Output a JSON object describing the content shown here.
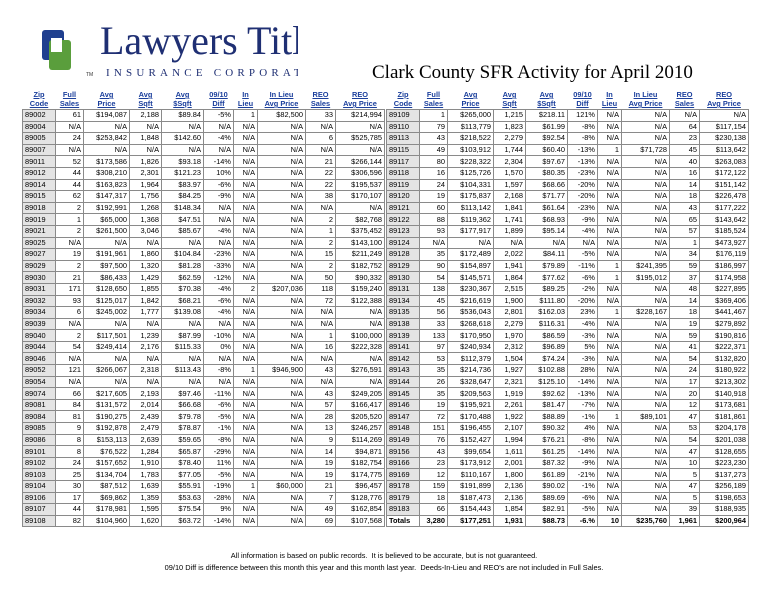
{
  "logo": {
    "name": "Lawyers Title",
    "tagline": "INSURANCE CORPORATION",
    "tm": "TM"
  },
  "title": "Clark County SFR Activity for April 2010",
  "columns": [
    [
      "Zip",
      "Code"
    ],
    [
      "Full",
      "Sales"
    ],
    [
      "Avg",
      "Price"
    ],
    [
      "Avg",
      "Sqft"
    ],
    [
      "Avg",
      "$Sqft"
    ],
    [
      "09/10",
      "Diff"
    ],
    [
      "In",
      "Lieu"
    ],
    [
      "In Lieu",
      "Avg Price"
    ],
    [
      "REO",
      "Sales"
    ],
    [
      "REO",
      "Avg Price"
    ]
  ],
  "tables": [
    {
      "rows": [
        [
          "89002",
          "61",
          "$194,087",
          "2,188",
          "$89.84",
          "-5%",
          "1",
          "$82,500",
          "33",
          "$214,994"
        ],
        [
          "89004",
          "N/A",
          "N/A",
          "N/A",
          "N/A",
          "N/A",
          "N/A",
          "N/A",
          "N/A",
          "N/A"
        ],
        [
          "89005",
          "24",
          "$253,842",
          "1,848",
          "$142.60",
          "-4%",
          "N/A",
          "N/A",
          "6",
          "$525,785"
        ],
        [
          "89007",
          "N/A",
          "N/A",
          "N/A",
          "N/A",
          "N/A",
          "N/A",
          "N/A",
          "N/A",
          "N/A"
        ],
        [
          "89011",
          "52",
          "$173,586",
          "1,826",
          "$93.18",
          "-14%",
          "N/A",
          "N/A",
          "21",
          "$266,144"
        ],
        [
          "89012",
          "44",
          "$308,210",
          "2,301",
          "$121.23",
          "10%",
          "N/A",
          "N/A",
          "22",
          "$306,596"
        ],
        [
          "89014",
          "44",
          "$163,823",
          "1,964",
          "$83.97",
          "-6%",
          "N/A",
          "N/A",
          "22",
          "$195,537"
        ],
        [
          "89015",
          "62",
          "$147,317",
          "1,756",
          "$84.25",
          "-9%",
          "N/A",
          "N/A",
          "38",
          "$170,107"
        ],
        [
          "89018",
          "2",
          "$192,991",
          "1,268",
          "$148.34",
          "N/A",
          "N/A",
          "N/A",
          "N/A",
          "N/A"
        ],
        [
          "89019",
          "1",
          "$65,000",
          "1,368",
          "$47.51",
          "N/A",
          "N/A",
          "N/A",
          "2",
          "$82,768"
        ],
        [
          "89021",
          "2",
          "$261,500",
          "3,046",
          "$85.67",
          "-4%",
          "N/A",
          "N/A",
          "1",
          "$375,452"
        ],
        [
          "89025",
          "N/A",
          "N/A",
          "N/A",
          "N/A",
          "N/A",
          "N/A",
          "N/A",
          "2",
          "$143,100"
        ],
        [
          "89027",
          "19",
          "$191,961",
          "1,860",
          "$104.84",
          "-23%",
          "N/A",
          "N/A",
          "15",
          "$211,249"
        ],
        [
          "89029",
          "2",
          "$97,500",
          "1,320",
          "$81.28",
          "-33%",
          "N/A",
          "N/A",
          "2",
          "$182,752"
        ],
        [
          "89030",
          "21",
          "$86,433",
          "1,429",
          "$62.59",
          "-12%",
          "N/A",
          "N/A",
          "50",
          "$90,332"
        ],
        [
          "89031",
          "171",
          "$128,650",
          "1,855",
          "$70.38",
          "-4%",
          "2",
          "$207,036",
          "118",
          "$159,240"
        ],
        [
          "89032",
          "93",
          "$125,017",
          "1,842",
          "$68.21",
          "-6%",
          "N/A",
          "N/A",
          "72",
          "$122,388"
        ],
        [
          "89034",
          "6",
          "$245,002",
          "1,777",
          "$139.08",
          "-4%",
          "N/A",
          "N/A",
          "N/A",
          "N/A"
        ],
        [
          "89039",
          "N/A",
          "N/A",
          "N/A",
          "N/A",
          "N/A",
          "N/A",
          "N/A",
          "N/A",
          "N/A"
        ],
        [
          "89040",
          "2",
          "$117,501",
          "1,239",
          "$87.99",
          "-10%",
          "N/A",
          "N/A",
          "1",
          "$100,000"
        ],
        [
          "89044",
          "54",
          "$249,414",
          "2,176",
          "$115.33",
          "0%",
          "N/A",
          "N/A",
          "16",
          "$222,328"
        ],
        [
          "89046",
          "N/A",
          "N/A",
          "N/A",
          "N/A",
          "N/A",
          "N/A",
          "N/A",
          "N/A",
          "N/A"
        ],
        [
          "89052",
          "121",
          "$266,067",
          "2,318",
          "$113.43",
          "-8%",
          "1",
          "$946,900",
          "43",
          "$276,591"
        ],
        [
          "89054",
          "N/A",
          "N/A",
          "N/A",
          "N/A",
          "N/A",
          "N/A",
          "N/A",
          "N/A",
          "N/A"
        ],
        [
          "89074",
          "66",
          "$217,605",
          "2,193",
          "$97.46",
          "-11%",
          "N/A",
          "N/A",
          "43",
          "$249,205"
        ],
        [
          "89081",
          "84",
          "$131,572",
          "2,014",
          "$66.68",
          "-6%",
          "N/A",
          "N/A",
          "57",
          "$166,417"
        ],
        [
          "89084",
          "81",
          "$190,275",
          "2,439",
          "$79.78",
          "-5%",
          "N/A",
          "N/A",
          "28",
          "$205,520"
        ],
        [
          "89085",
          "9",
          "$192,878",
          "2,479",
          "$78.87",
          "-1%",
          "N/A",
          "N/A",
          "13",
          "$246,257"
        ],
        [
          "89086",
          "8",
          "$153,113",
          "2,639",
          "$59.65",
          "-8%",
          "N/A",
          "N/A",
          "9",
          "$114,269"
        ],
        [
          "89101",
          "8",
          "$76,522",
          "1,284",
          "$65.87",
          "-29%",
          "N/A",
          "N/A",
          "14",
          "$94,871"
        ],
        [
          "89102",
          "24",
          "$157,652",
          "1,910",
          "$78.40",
          "11%",
          "N/A",
          "N/A",
          "19",
          "$182,754"
        ],
        [
          "89103",
          "25",
          "$134,704",
          "1,783",
          "$77.05",
          "-5%",
          "N/A",
          "N/A",
          "19",
          "$174,775"
        ],
        [
          "89104",
          "30",
          "$87,512",
          "1,639",
          "$55.91",
          "-19%",
          "1",
          "$60,000",
          "21",
          "$96,457"
        ],
        [
          "89106",
          "17",
          "$69,862",
          "1,359",
          "$53.63",
          "-28%",
          "N/A",
          "N/A",
          "7",
          "$128,776"
        ],
        [
          "89107",
          "44",
          "$178,981",
          "1,595",
          "$75.54",
          "9%",
          "N/A",
          "N/A",
          "49",
          "$162,854"
        ],
        [
          "89108",
          "82",
          "$104,960",
          "1,620",
          "$63.72",
          "-14%",
          "N/A",
          "N/A",
          "69",
          "$107,568"
        ]
      ]
    },
    {
      "rows": [
        [
          "89109",
          "1",
          "$265,000",
          "1,215",
          "$218.11",
          "121%",
          "N/A",
          "N/A",
          "N/A",
          "N/A"
        ],
        [
          "89110",
          "79",
          "$113,779",
          "1,823",
          "$61.99",
          "-8%",
          "N/A",
          "N/A",
          "64",
          "$117,154"
        ],
        [
          "89113",
          "43",
          "$218,522",
          "2,279",
          "$92.54",
          "-8%",
          "N/A",
          "N/A",
          "23",
          "$230,138"
        ],
        [
          "89115",
          "49",
          "$103,912",
          "1,744",
          "$60.40",
          "-13%",
          "1",
          "$71,728",
          "45",
          "$113,642"
        ],
        [
          "89117",
          "80",
          "$228,322",
          "2,304",
          "$97.67",
          "-13%",
          "N/A",
          "N/A",
          "40",
          "$263,083"
        ],
        [
          "89118",
          "16",
          "$125,726",
          "1,570",
          "$80.35",
          "-23%",
          "N/A",
          "N/A",
          "16",
          "$172,122"
        ],
        [
          "89119",
          "24",
          "$104,331",
          "1,597",
          "$68.66",
          "-20%",
          "N/A",
          "N/A",
          "14",
          "$151,142"
        ],
        [
          "89120",
          "19",
          "$175,837",
          "2,168",
          "$71.77",
          "-20%",
          "N/A",
          "N/A",
          "18",
          "$226,478"
        ],
        [
          "89121",
          "60",
          "$113,142",
          "1,841",
          "$61.64",
          "-23%",
          "N/A",
          "N/A",
          "43",
          "$177,222"
        ],
        [
          "89122",
          "88",
          "$119,362",
          "1,741",
          "$68.93",
          "-9%",
          "N/A",
          "N/A",
          "65",
          "$143,642"
        ],
        [
          "89123",
          "93",
          "$177,917",
          "1,899",
          "$95.14",
          "-4%",
          "N/A",
          "N/A",
          "57",
          "$185,524"
        ],
        [
          "89124",
          "N/A",
          "N/A",
          "N/A",
          "N/A",
          "N/A",
          "N/A",
          "N/A",
          "1",
          "$473,927"
        ],
        [
          "89128",
          "35",
          "$172,489",
          "2,022",
          "$84.11",
          "-5%",
          "N/A",
          "N/A",
          "34",
          "$176,119"
        ],
        [
          "89129",
          "90",
          "$154,897",
          "1,941",
          "$79.89",
          "-11%",
          "1",
          "$241,395",
          "59",
          "$186,997"
        ],
        [
          "89130",
          "54",
          "$145,571",
          "1,864",
          "$77.62",
          "-6%",
          "1",
          "$195,012",
          "37",
          "$174,958"
        ],
        [
          "89131",
          "138",
          "$230,367",
          "2,515",
          "$89.25",
          "-2%",
          "N/A",
          "N/A",
          "48",
          "$227,895"
        ],
        [
          "89134",
          "45",
          "$216,619",
          "1,900",
          "$111.80",
          "-20%",
          "N/A",
          "N/A",
          "14",
          "$369,406"
        ],
        [
          "89135",
          "56",
          "$536,043",
          "2,801",
          "$162.03",
          "23%",
          "1",
          "$228,167",
          "18",
          "$441,467"
        ],
        [
          "89138",
          "33",
          "$268,618",
          "2,279",
          "$116.31",
          "-4%",
          "N/A",
          "N/A",
          "19",
          "$279,892"
        ],
        [
          "89139",
          "133",
          "$170,950",
          "1,970",
          "$86.59",
          "-3%",
          "N/A",
          "N/A",
          "59",
          "$190,816"
        ],
        [
          "89141",
          "97",
          "$240,934",
          "2,312",
          "$96.89",
          "5%",
          "N/A",
          "N/A",
          "41",
          "$222,371"
        ],
        [
          "89142",
          "53",
          "$112,379",
          "1,504",
          "$74.24",
          "-3%",
          "N/A",
          "N/A",
          "54",
          "$132,820"
        ],
        [
          "89143",
          "35",
          "$214,736",
          "1,927",
          "$102.88",
          "28%",
          "N/A",
          "N/A",
          "24",
          "$180,922"
        ],
        [
          "89144",
          "26",
          "$328,647",
          "2,321",
          "$125.10",
          "-14%",
          "N/A",
          "N/A",
          "17",
          "$213,302"
        ],
        [
          "89145",
          "35",
          "$209,563",
          "1,919",
          "$92.62",
          "-13%",
          "N/A",
          "N/A",
          "20",
          "$140,918"
        ],
        [
          "89146",
          "19",
          "$195,921",
          "2,261",
          "$81.47",
          "-7%",
          "N/A",
          "N/A",
          "12",
          "$173,681"
        ],
        [
          "89147",
          "72",
          "$170,488",
          "1,922",
          "$88.89",
          "-1%",
          "1",
          "$89,101",
          "47",
          "$181,861"
        ],
        [
          "89148",
          "151",
          "$196,455",
          "2,107",
          "$90.32",
          "4%",
          "N/A",
          "N/A",
          "53",
          "$204,178"
        ],
        [
          "89149",
          "76",
          "$152,427",
          "1,994",
          "$76.21",
          "-8%",
          "N/A",
          "N/A",
          "54",
          "$201,038"
        ],
        [
          "89156",
          "43",
          "$99,654",
          "1,611",
          "$61.25",
          "-14%",
          "N/A",
          "N/A",
          "47",
          "$128,655"
        ],
        [
          "89166",
          "23",
          "$173,912",
          "2,001",
          "$87.32",
          "-9%",
          "N/A",
          "N/A",
          "10",
          "$223,230"
        ],
        [
          "89169",
          "12",
          "$110,167",
          "1,800",
          "$61.89",
          "-21%",
          "N/A",
          "N/A",
          "5",
          "$137,273"
        ],
        [
          "89178",
          "159",
          "$191,899",
          "2,136",
          "$90.02",
          "-1%",
          "N/A",
          "N/A",
          "47",
          "$256,189"
        ],
        [
          "89179",
          "18",
          "$187,473",
          "2,136",
          "$89.69",
          "-6%",
          "N/A",
          "N/A",
          "5",
          "$198,653"
        ],
        [
          "89183",
          "66",
          "$154,443",
          "1,854",
          "$82.91",
          "-5%",
          "N/A",
          "N/A",
          "39",
          "$188,935"
        ],
        [
          "Totals",
          "3,280",
          "$177,251",
          "1,931",
          "$88.73",
          "-6.%",
          "10",
          "$235,760",
          "1,961",
          "$200,964"
        ]
      ]
    }
  ],
  "footer": [
    "All information is based on public records.  It is believed to be accurate, but is not guaranteed.",
    "09/10 Diff is difference between this month this year and this month last year.  Deeds-In-Lieu and REO's are not included in Full Sales."
  ]
}
